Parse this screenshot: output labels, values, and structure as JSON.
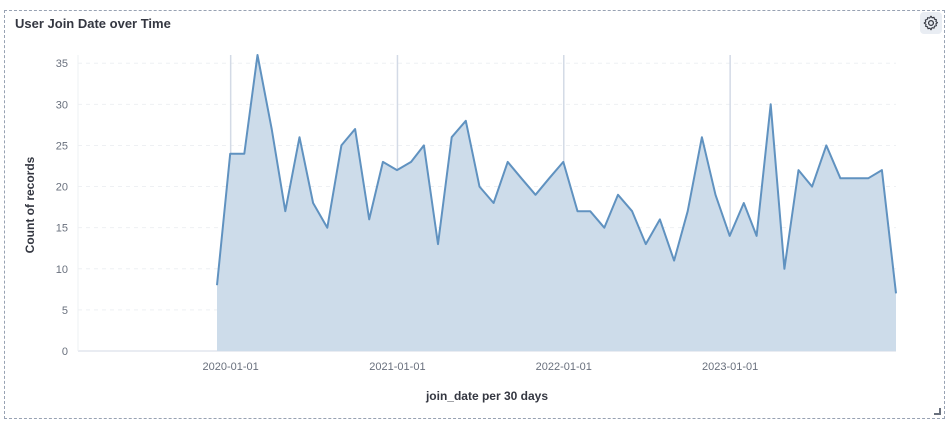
{
  "panel": {
    "title": "User Join Date over Time",
    "settings_icon": "gear-icon",
    "resize_icon": "resize-handle-icon"
  },
  "chart_data": {
    "type": "area",
    "title": "User Join Date over Time",
    "xlabel": "join_date per 30 days",
    "ylabel": "Count of records",
    "x_ticks": [
      "2020-01-01",
      "2021-01-01",
      "2022-01-01",
      "2023-01-01"
    ],
    "y_ticks": [
      0,
      5,
      10,
      15,
      20,
      25,
      30,
      35
    ],
    "ylim": [
      0,
      36
    ],
    "xlim": [
      "2019-01-31",
      "2023-12-31"
    ],
    "grid": true,
    "legend": "none",
    "colors": {
      "line": "#6092c0",
      "fill": "#cddcea"
    },
    "series": [
      {
        "x": [
          "2019-12-02",
          "2019-12-31",
          "2020-01-31",
          "2020-02-29",
          "2020-03-31",
          "2020-04-30",
          "2020-05-31",
          "2020-06-30",
          "2020-07-31",
          "2020-08-31",
          "2020-09-30",
          "2020-10-31",
          "2020-11-30",
          "2020-12-31",
          "2021-01-31",
          "2021-02-28",
          "2021-03-31",
          "2021-04-30",
          "2021-05-31",
          "2021-06-30",
          "2021-07-31",
          "2021-08-31",
          "2021-09-30",
          "2021-10-31",
          "2021-11-30",
          "2021-12-31",
          "2022-01-31",
          "2022-02-28",
          "2022-03-31",
          "2022-04-30",
          "2022-05-31",
          "2022-06-30",
          "2022-07-31",
          "2022-08-31",
          "2022-09-30",
          "2022-10-31",
          "2022-11-30",
          "2022-12-31",
          "2023-01-31",
          "2023-02-28",
          "2023-03-31",
          "2023-04-30",
          "2023-05-31",
          "2023-06-30",
          "2023-07-31",
          "2023-08-31",
          "2023-09-30",
          "2023-10-31",
          "2023-11-30",
          "2023-12-31"
        ],
        "values": [
          8,
          24,
          24,
          36,
          27,
          17,
          26,
          18,
          15,
          25,
          27,
          16,
          23,
          22,
          23,
          25,
          13,
          26,
          28,
          20,
          18,
          23,
          21,
          19,
          21,
          23,
          17,
          17,
          15,
          19,
          17,
          13,
          16,
          11,
          17,
          26,
          19,
          14,
          18,
          14,
          30,
          10,
          22,
          20,
          25,
          21,
          21,
          21,
          22,
          7
        ]
      }
    ]
  }
}
